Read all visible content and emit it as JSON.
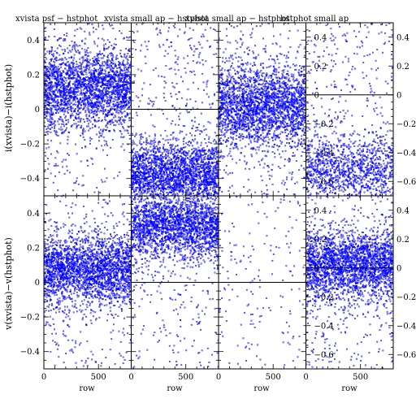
{
  "colors": {
    "points": "#0000ff",
    "axes": "#000000",
    "background": "#ffffff"
  },
  "chart_data": [
    {
      "type": "scatter",
      "title": "xvista psf − hstphot",
      "panel": "top-1",
      "xlabel": "",
      "ylabel": "i(xvista)−i(hstphot)",
      "xlim": [
        0,
        800
      ],
      "ylim": [
        -0.5,
        0.5
      ],
      "xticks": [],
      "yticks": [
        "0.4",
        "0.2",
        "0",
        "−0.2",
        "−0.4"
      ],
      "series": [
        {
          "kind": "density-cloud",
          "points": 2600,
          "x_range": [
            0,
            800
          ],
          "center_y": 0.12,
          "sigma_y": 0.12,
          "sparse_fraction": 0.1
        }
      ]
    },
    {
      "type": "scatter",
      "title": "xvista small ap − hstphot",
      "panel": "top-2",
      "xlabel": "",
      "ylabel": "",
      "xlim": [
        0,
        800
      ],
      "ylim": [
        -0.5,
        0.5
      ],
      "xticks": [],
      "yticks": [],
      "hline": 0,
      "series": [
        {
          "kind": "density-cloud",
          "points": 2600,
          "x_range": [
            0,
            800
          ],
          "center_y": -0.38,
          "sigma_y": 0.1,
          "sparse_fraction": 0.15
        }
      ]
    },
    {
      "type": "scatter",
      "title": "xvista small ap − hstphot",
      "panel": "top-3",
      "xlabel": "",
      "ylabel": "",
      "xlim": [
        0,
        800
      ],
      "ylim": [
        -0.5,
        0.5
      ],
      "xticks": [],
      "yticks": [],
      "series": [
        {
          "kind": "density-cloud",
          "points": 2600,
          "x_range": [
            0,
            800
          ],
          "center_y": 0.02,
          "sigma_y": 0.12,
          "sparse_fraction": 0.1
        }
      ]
    },
    {
      "type": "scatter",
      "title": "hstphot small ap",
      "panel": "top-4",
      "xlabel": "",
      "ylabel": "",
      "xlim": [
        0,
        800
      ],
      "ylim": [
        -0.7,
        0.5
      ],
      "xticks": [],
      "yticks": [
        "0.4",
        "0.2",
        "0",
        "−0.2",
        "−0.4",
        "−0.6"
      ],
      "hline": 0,
      "series": [
        {
          "kind": "density-cloud",
          "points": 1400,
          "x_range": [
            0,
            800
          ],
          "center_y": -0.52,
          "sigma_y": 0.12,
          "sparse_fraction": 0.25
        }
      ]
    },
    {
      "type": "scatter",
      "title": "",
      "panel": "bottom-1",
      "xlabel": "row",
      "ylabel": "v(xvista)−v(hstphot)",
      "xlim": [
        0,
        800
      ],
      "ylim": [
        -0.5,
        0.5
      ],
      "xticks": [
        "0",
        "500"
      ],
      "yticks": [
        "0.4",
        "0.2",
        "0",
        "−0.2",
        "−0.4"
      ],
      "series": [
        {
          "kind": "density-cloud",
          "points": 2600,
          "x_range": [
            0,
            800
          ],
          "center_y": 0.07,
          "sigma_y": 0.1,
          "sparse_fraction": 0.1
        }
      ]
    },
    {
      "type": "scatter",
      "title": "",
      "panel": "bottom-2",
      "xlabel": "row",
      "ylabel": "",
      "xlim": [
        0,
        800
      ],
      "ylim": [
        -0.5,
        0.5
      ],
      "xticks": [
        "0",
        "500"
      ],
      "yticks": [],
      "hline": 0,
      "series": [
        {
          "kind": "density-cloud",
          "points": 2400,
          "x_range": [
            0,
            800
          ],
          "center_y": 0.33,
          "sigma_y": 0.1,
          "sparse_fraction": 0.12
        }
      ]
    },
    {
      "type": "scatter",
      "title": "",
      "panel": "bottom-3",
      "xlabel": "row",
      "ylabel": "",
      "xlim": [
        0,
        800
      ],
      "ylim": [
        -0.5,
        0.5
      ],
      "xticks": [
        "0",
        "500"
      ],
      "yticks": [],
      "hline": 0,
      "series": [
        {
          "kind": "density-cloud",
          "points": 160,
          "x_range": [
            0,
            800
          ],
          "center_y": 0.2,
          "sigma_y": 0.2,
          "sparse_fraction": 1.0
        }
      ]
    },
    {
      "type": "scatter",
      "title": "",
      "panel": "bottom-4",
      "xlabel": "row",
      "ylabel": "",
      "xlim": [
        0,
        800
      ],
      "ylim": [
        -0.7,
        0.5
      ],
      "xticks": [
        "0",
        "500"
      ],
      "yticks": [
        "0.4",
        "0.2",
        "0",
        "−0.2",
        "−0.4",
        "−0.6"
      ],
      "hline": 0,
      "series": [
        {
          "kind": "density-cloud",
          "points": 2600,
          "x_range": [
            0,
            800
          ],
          "center_y": 0.02,
          "sigma_y": 0.12,
          "sparse_fraction": 0.12
        }
      ]
    }
  ]
}
